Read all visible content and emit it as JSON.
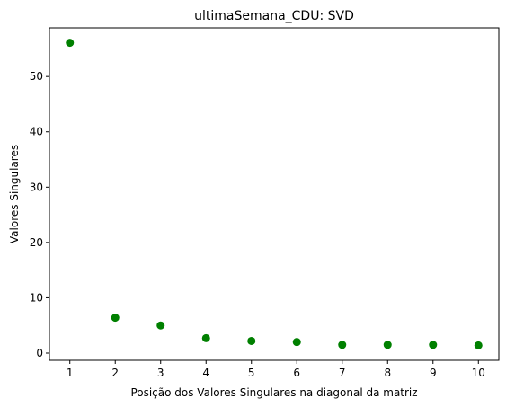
{
  "chart_data": {
    "type": "scatter",
    "title": "ultimaSemana_CDU: SVD",
    "xlabel": "Posição dos Valores Singulares na diagonal da matriz",
    "ylabel": "Valores Singulares",
    "x": [
      1,
      2,
      3,
      4,
      5,
      6,
      7,
      8,
      9,
      10
    ],
    "y": [
      56.1,
      6.4,
      5.0,
      2.7,
      2.2,
      2.0,
      1.5,
      1.5,
      1.5,
      1.4
    ],
    "xlim": [
      0.55,
      10.45
    ],
    "ylim": [
      -1.3,
      58.8
    ],
    "xticks": [
      1,
      2,
      3,
      4,
      5,
      6,
      7,
      8,
      9,
      10
    ],
    "yticks": [
      0,
      10,
      20,
      30,
      40,
      50
    ],
    "xtick_labels": [
      "1",
      "2",
      "3",
      "4",
      "5",
      "6",
      "7",
      "8",
      "9",
      "10"
    ],
    "ytick_labels": [
      "0",
      "10",
      "20",
      "30",
      "40",
      "50"
    ],
    "marker_color": "#008000",
    "grid": false,
    "legend": "none"
  }
}
